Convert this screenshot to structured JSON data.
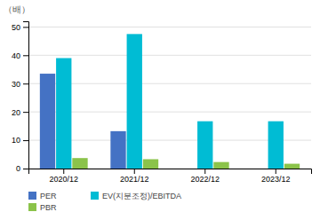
{
  "chart_data": {
    "type": "bar",
    "ylabel": "（배）",
    "categories": [
      "2020/12",
      "2021/12",
      "2022/12",
      "2023/12"
    ],
    "series": [
      {
        "name": "PER",
        "color": "#4472c4",
        "values": [
          33.5,
          13.2,
          0,
          0
        ]
      },
      {
        "name": "EV(지분조정)/EBITDA",
        "color": "#00bcd4",
        "values": [
          39.0,
          47.5,
          16.7,
          16.7
        ]
      },
      {
        "name": "PBR",
        "color": "#8bc34a",
        "values": [
          3.7,
          3.3,
          2.3,
          1.7
        ]
      }
    ],
    "ylim": [
      0,
      52
    ],
    "yticks": [
      0,
      10,
      20,
      30,
      40,
      50
    ],
    "grid": true,
    "legend": "bottom"
  }
}
